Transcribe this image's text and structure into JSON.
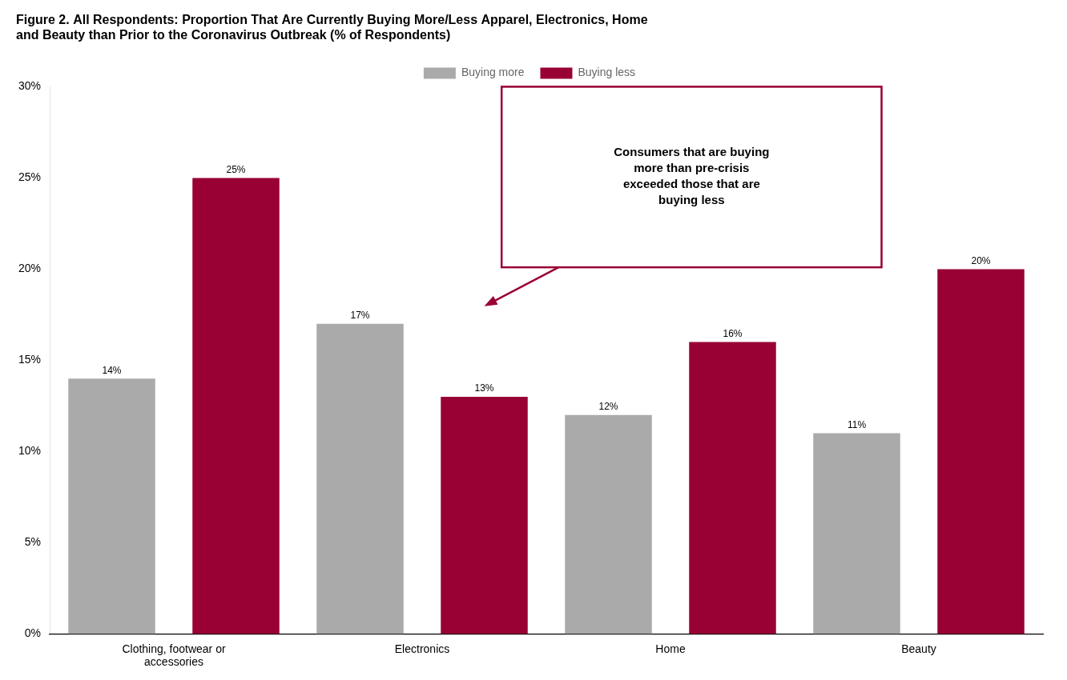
{
  "chart_data": {
    "type": "bar",
    "title": "Figure 2. All Respondents: Proportion That Are Currently Buying More/Less Apparel, Electronics, Home\nand Beauty than Prior to the Coronavirus Outbreak (% of Respondents)",
    "categories": [
      "Clothing, footwear or\naccessories",
      "Electronics",
      "Home",
      "Beauty"
    ],
    "series": [
      {
        "name": "Buying more",
        "color": "#AAAAAA",
        "values": [
          14,
          17,
          12,
          11
        ],
        "value_labels": [
          "14%",
          "17%",
          "12%",
          "11%"
        ]
      },
      {
        "name": "Buying less",
        "color": "#990033",
        "values": [
          25,
          13,
          16,
          20
        ],
        "value_labels": [
          "25%",
          "13%",
          "16%",
          "20%"
        ]
      }
    ],
    "ylim": [
      0,
      30
    ],
    "yticks": [
      {
        "value": 0,
        "label": "0%"
      },
      {
        "value": 5,
        "label": "5%"
      },
      {
        "value": 10,
        "label": "10%"
      },
      {
        "value": 15,
        "label": "15%"
      },
      {
        "value": 20,
        "label": "20%"
      },
      {
        "value": 25,
        "label": "25%"
      },
      {
        "value": 30,
        "label": "30%"
      }
    ],
    "grid": false,
    "legend": "top",
    "data_labels": true,
    "annotations": [
      "Consumers that are buying\nmore than pre-crisis\nexceeded those that are\nbuying less"
    ]
  }
}
